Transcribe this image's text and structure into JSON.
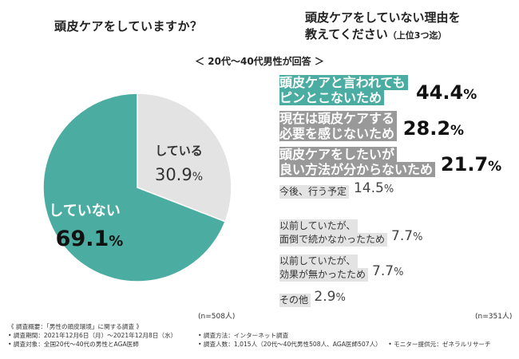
{
  "left_title": "頭皮ケアをしていますか？",
  "right_title_line1": "頭皮ケアをしていない理由を",
  "right_title_line2": "教えてください",
  "right_title_suffix": "（上位3つ迄）",
  "respondents_label": "＜ 20代〜40代男性が回答 ＞",
  "left_n": "(n=508人)",
  "right_n": "(n=351人)",
  "colors": {
    "teal": "#4bada1",
    "gray": "#e3e3e3",
    "darkgray": "#999999",
    "text": "#222222"
  },
  "chart_data": [
    {
      "type": "pie",
      "title": "頭皮ケアをしていますか？",
      "slices": [
        {
          "label": "している",
          "value": 30.9,
          "display": "30.9%",
          "num": "30.9",
          "unit": "%"
        },
        {
          "label": "していない",
          "value": 69.1,
          "display": "69.1%",
          "num": "69.1",
          "unit": "%"
        }
      ]
    },
    {
      "type": "bar",
      "title": "頭皮ケアをしていない理由を教えてください（上位3つ迄）",
      "bars": [
        {
          "lines": [
            "頭皮ケアと言われても",
            "ピンとこないため"
          ],
          "value": 44.4,
          "num": "44.4",
          "unit": "%"
        },
        {
          "lines": [
            "現在は頭皮ケアする",
            "必要を感じないため"
          ],
          "value": 28.2,
          "num": "28.2",
          "unit": "%"
        },
        {
          "lines": [
            "頭皮ケアをしたいが",
            "良い方法が分からないため"
          ],
          "value": 21.7,
          "num": "21.7",
          "unit": "%"
        },
        {
          "lines": [
            "今後、行う予定"
          ],
          "value": 14.5,
          "num": "14.5",
          "unit": "%"
        },
        {
          "lines": [
            "以前していたが、",
            "面倒で続かなかったため"
          ],
          "value": 7.7,
          "num": "7.7",
          "unit": "%"
        },
        {
          "lines": [
            "以前していたが、",
            "効果が無かったため"
          ],
          "value": 7.7,
          "num": "7.7",
          "unit": "%"
        },
        {
          "lines": [
            "その他"
          ],
          "value": 2.9,
          "num": "2.9",
          "unit": "%"
        }
      ]
    }
  ],
  "footnote": {
    "title": "《 調査概要：「男性の頭皮環境」に関する調査 》",
    "period": "• 調査期間：2021年12月6日（月）〜2021年12月8日（水）",
    "method": "• 調査方法：インターネット調査",
    "target": "• 調査対象：全国20代〜40代の男性とAGA医師",
    "count": "• 調査人数：1,015人（20代〜40代男性508人、AGA医師507人）",
    "provider": "• モニター提供元：ゼネラルリサーチ"
  }
}
